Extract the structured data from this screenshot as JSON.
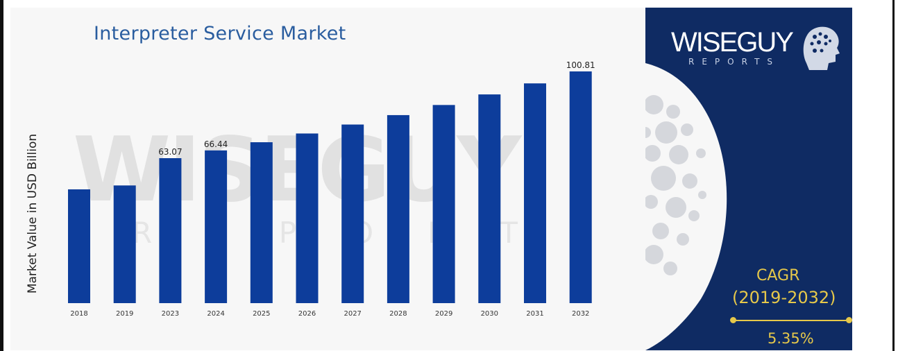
{
  "colors": {
    "bar": "#0d3d9b",
    "title": "#2a5d9f",
    "panel": "#0f2b63",
    "accent": "#e6c84a"
  },
  "chart_data": {
    "type": "bar",
    "title": "Interpreter Service Market",
    "ylabel": "Market Value in USD Billion",
    "xlabel": "",
    "categories": [
      "2018",
      "2019",
      "2023",
      "2024",
      "2025",
      "2026",
      "2027",
      "2028",
      "2029",
      "2030",
      "2031",
      "2032"
    ],
    "values": [
      49.5,
      51.2,
      63.07,
      66.44,
      70.0,
      73.8,
      77.7,
      81.8,
      86.2,
      90.8,
      95.6,
      100.81
    ],
    "data_labels": {
      "2": "63.07",
      "3": "66.44",
      "11": "100.81"
    },
    "ylim": [
      0,
      102
    ],
    "grid": false,
    "legend": "none"
  },
  "brand": {
    "logo_text": "WISEGUY",
    "logo_sub": "REPORTS"
  },
  "cagr": {
    "label": "CAGR",
    "period": "(2019-2032)",
    "value": "5.35%"
  }
}
